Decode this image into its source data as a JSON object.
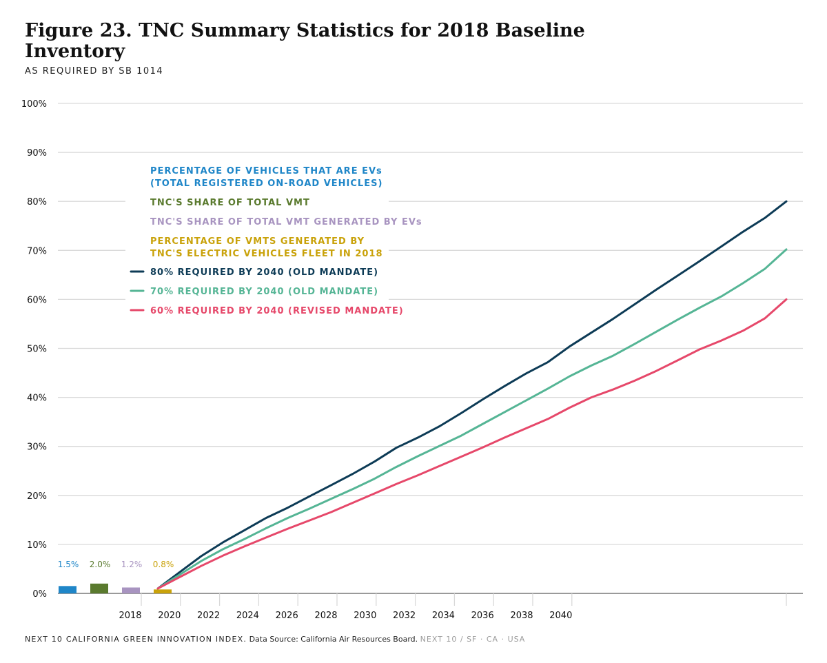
{
  "title": "Figure 23. TNC Summary Statistics for 2018 Baseline Inventory",
  "subtitle": "AS REQUIRED BY SB 1014",
  "footer": {
    "brand": "NEXT 10 CALIFORNIA GREEN INNOVATION INDEX.",
    "source": "Data Source: California Air Resources Board.",
    "tagline": "NEXT 10  /  SF · CA · USA"
  },
  "chart_data": {
    "type": "bar+line",
    "title": "Figure 23. TNC Summary Statistics for 2018 Baseline Inventory",
    "subtitle": "AS REQUIRED BY SB 1014",
    "ylim": [
      0,
      100
    ],
    "y_ticks": [
      "0%",
      "10%",
      "20%",
      "30%",
      "40%",
      "50%",
      "60%",
      "70%",
      "80%",
      "90%",
      "100%"
    ],
    "x_ticks": [
      "2018",
      "2020",
      "2022",
      "2024",
      "2026",
      "2028",
      "2030",
      "2032",
      "2034",
      "2036",
      "2038",
      "2040"
    ],
    "grid": true,
    "legend_position": "top-left",
    "bars": [
      {
        "label_line1": "PERCENTAGE OF VEHICLES THAT ARE EVs",
        "label_line2": "(TOTAL REGISTERED ON-ROAD VEHICLES)",
        "value": 1.5,
        "value_label": "1.5%",
        "color": "#1f86c8"
      },
      {
        "label_line1": "TNC'S SHARE OF TOTAL VMT",
        "label_line2": "",
        "value": 2.0,
        "value_label": "2.0%",
        "color": "#5a7a2e"
      },
      {
        "label_line1": "TNC'S SHARE OF TOTAL VMT GENERATED BY EVs",
        "label_line2": "",
        "value": 1.2,
        "value_label": "1.2%",
        "color": "#a894c0"
      },
      {
        "label_line1": "PERCENTAGE OF VMTS GENERATED BY",
        "label_line2": "TNC'S ELECTRIC VEHICLES FLEET IN 2018",
        "value": 0.8,
        "value_label": "0.8%",
        "color": "#c9a20a"
      }
    ],
    "series": [
      {
        "name": "80% REQUIRED BY 2040 (OLD MANDATE)",
        "color": "#0d3b56",
        "values": [
          1,
          4.3,
          7.6,
          10.4,
          12.9,
          15.4,
          17.5,
          19.8,
          22.1,
          24.4,
          26.9,
          29.7,
          31.8,
          34.1,
          36.8,
          39.6,
          42.3,
          44.9,
          47.2,
          50.4,
          53.2,
          56.0,
          59.0,
          62.0,
          64.9,
          67.8,
          70.8,
          73.8,
          76.6,
          80.0
        ]
      },
      {
        "name": "70% REQUIRED BY 2040 (OLD MANDATE)",
        "color": "#55b595",
        "values": [
          1,
          3.8,
          6.6,
          9.0,
          11.1,
          13.3,
          15.4,
          17.3,
          19.3,
          21.3,
          23.4,
          25.8,
          28.0,
          30.1,
          32.2,
          34.6,
          37.0,
          39.4,
          41.8,
          44.3,
          46.5,
          48.5,
          50.9,
          53.4,
          55.9,
          58.3,
          60.6,
          63.3,
          66.2,
          70.2
        ]
      },
      {
        "name": "60% REQUIRED BY 2040 (REVISED MANDATE)",
        "color": "#e6486a",
        "values": [
          1,
          3.3,
          5.6,
          7.7,
          9.6,
          11.4,
          13.2,
          14.9,
          16.6,
          18.5,
          20.4,
          22.3,
          24.1,
          26.0,
          27.9,
          29.8,
          31.8,
          33.7,
          35.6,
          37.9,
          40.0,
          41.6,
          43.4,
          45.4,
          47.6,
          49.8,
          51.6,
          53.6,
          56.1,
          60.0
        ]
      }
    ]
  }
}
